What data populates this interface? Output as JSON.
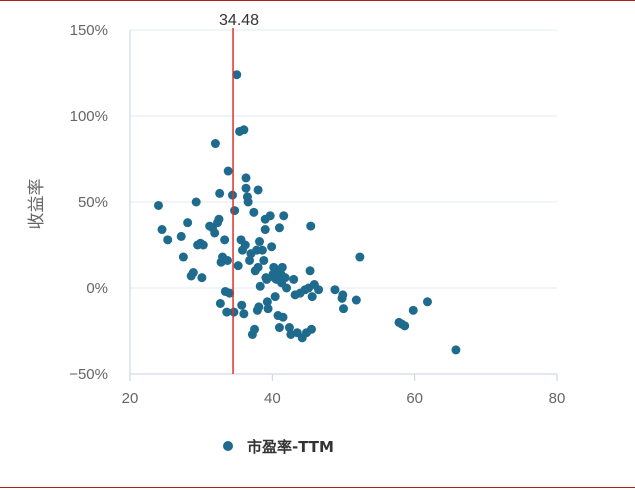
{
  "chart_data": {
    "type": "scatter",
    "title": "",
    "xlabel": "",
    "ylabel": "收益率",
    "xlim": [
      20,
      80
    ],
    "ylim": [
      -50,
      150
    ],
    "x_ticks": [
      20,
      40,
      60,
      80
    ],
    "y_ticks": [
      150,
      100,
      50,
      0,
      -50
    ],
    "x_tick_labels": [
      "20",
      "40",
      "60",
      "80"
    ],
    "y_tick_labels": [
      "150%",
      "100%",
      "50%",
      "0%",
      "−50%"
    ],
    "grid": "horizontal",
    "legend_position": "bottom",
    "reference_line": {
      "x": 34.48,
      "label": "34.48",
      "color": "#e0302a"
    },
    "series": [
      {
        "name": "市盈率-TTM",
        "color": "#1f6b8e",
        "points": [
          [
            24.0,
            48
          ],
          [
            24.5,
            34
          ],
          [
            25.3,
            28
          ],
          [
            27.2,
            30
          ],
          [
            27.5,
            18
          ],
          [
            28.1,
            38
          ],
          [
            28.6,
            7
          ],
          [
            28.9,
            9
          ],
          [
            29.3,
            50
          ],
          [
            29.5,
            25
          ],
          [
            29.9,
            26
          ],
          [
            30.1,
            6
          ],
          [
            30.3,
            25
          ],
          [
            31.2,
            36
          ],
          [
            31.6,
            35
          ],
          [
            31.9,
            32
          ],
          [
            32.0,
            84
          ],
          [
            32.3,
            38
          ],
          [
            32.5,
            40
          ],
          [
            32.6,
            55
          ],
          [
            32.7,
            -9
          ],
          [
            32.8,
            15
          ],
          [
            33.0,
            18
          ],
          [
            33.3,
            28
          ],
          [
            33.4,
            -2
          ],
          [
            33.6,
            -14
          ],
          [
            33.7,
            16
          ],
          [
            33.8,
            68
          ],
          [
            34.0,
            -3
          ],
          [
            34.4,
            54
          ],
          [
            34.6,
            -14
          ],
          [
            34.7,
            45
          ],
          [
            35.0,
            124
          ],
          [
            35.2,
            13
          ],
          [
            35.4,
            91
          ],
          [
            35.6,
            28
          ],
          [
            35.7,
            -10
          ],
          [
            35.8,
            22
          ],
          [
            36.0,
            -15
          ],
          [
            36.0,
            92
          ],
          [
            36.2,
            25
          ],
          [
            36.3,
            58
          ],
          [
            36.3,
            64
          ],
          [
            36.5,
            53
          ],
          [
            36.6,
            50
          ],
          [
            36.8,
            16
          ],
          [
            37.0,
            20
          ],
          [
            37.2,
            -27
          ],
          [
            37.4,
            44
          ],
          [
            37.5,
            -24
          ],
          [
            37.6,
            10
          ],
          [
            37.8,
            22
          ],
          [
            37.9,
            -13
          ],
          [
            38.0,
            12
          ],
          [
            38.0,
            57
          ],
          [
            38.1,
            -11
          ],
          [
            38.2,
            27
          ],
          [
            38.3,
            1
          ],
          [
            38.6,
            22
          ],
          [
            38.8,
            16
          ],
          [
            39.0,
            40
          ],
          [
            39.0,
            34
          ],
          [
            39.1,
            6
          ],
          [
            39.2,
            5
          ],
          [
            39.3,
            -8
          ],
          [
            39.4,
            -12
          ],
          [
            39.7,
            42
          ],
          [
            39.9,
            24
          ],
          [
            40.1,
            8
          ],
          [
            40.2,
            12
          ],
          [
            40.3,
            6
          ],
          [
            40.4,
            -5
          ],
          [
            40.6,
            5
          ],
          [
            40.8,
            -16
          ],
          [
            41.0,
            35
          ],
          [
            41.0,
            10
          ],
          [
            41.0,
            -23
          ],
          [
            41.2,
            8
          ],
          [
            41.3,
            3
          ],
          [
            41.4,
            12
          ],
          [
            41.5,
            -17
          ],
          [
            41.6,
            42
          ],
          [
            41.8,
            6
          ],
          [
            42.0,
            0
          ],
          [
            42.4,
            -23
          ],
          [
            42.6,
            -27
          ],
          [
            43.0,
            5
          ],
          [
            43.2,
            -4
          ],
          [
            43.5,
            -26
          ],
          [
            43.9,
            -3
          ],
          [
            44.2,
            -29
          ],
          [
            44.6,
            -1
          ],
          [
            44.8,
            -26
          ],
          [
            45.1,
            0
          ],
          [
            45.3,
            10
          ],
          [
            45.4,
            36
          ],
          [
            45.5,
            -24
          ],
          [
            45.6,
            -5
          ],
          [
            45.9,
            2
          ],
          [
            46.5,
            -1
          ],
          [
            48.8,
            -1
          ],
          [
            49.8,
            -6
          ],
          [
            49.9,
            -4
          ],
          [
            50.0,
            -12
          ],
          [
            51.8,
            -7
          ],
          [
            52.3,
            18
          ],
          [
            57.8,
            -20
          ],
          [
            58.2,
            -21
          ],
          [
            58.6,
            -22
          ],
          [
            59.8,
            -13
          ],
          [
            61.8,
            -8
          ],
          [
            65.8,
            -36
          ]
        ]
      }
    ]
  }
}
